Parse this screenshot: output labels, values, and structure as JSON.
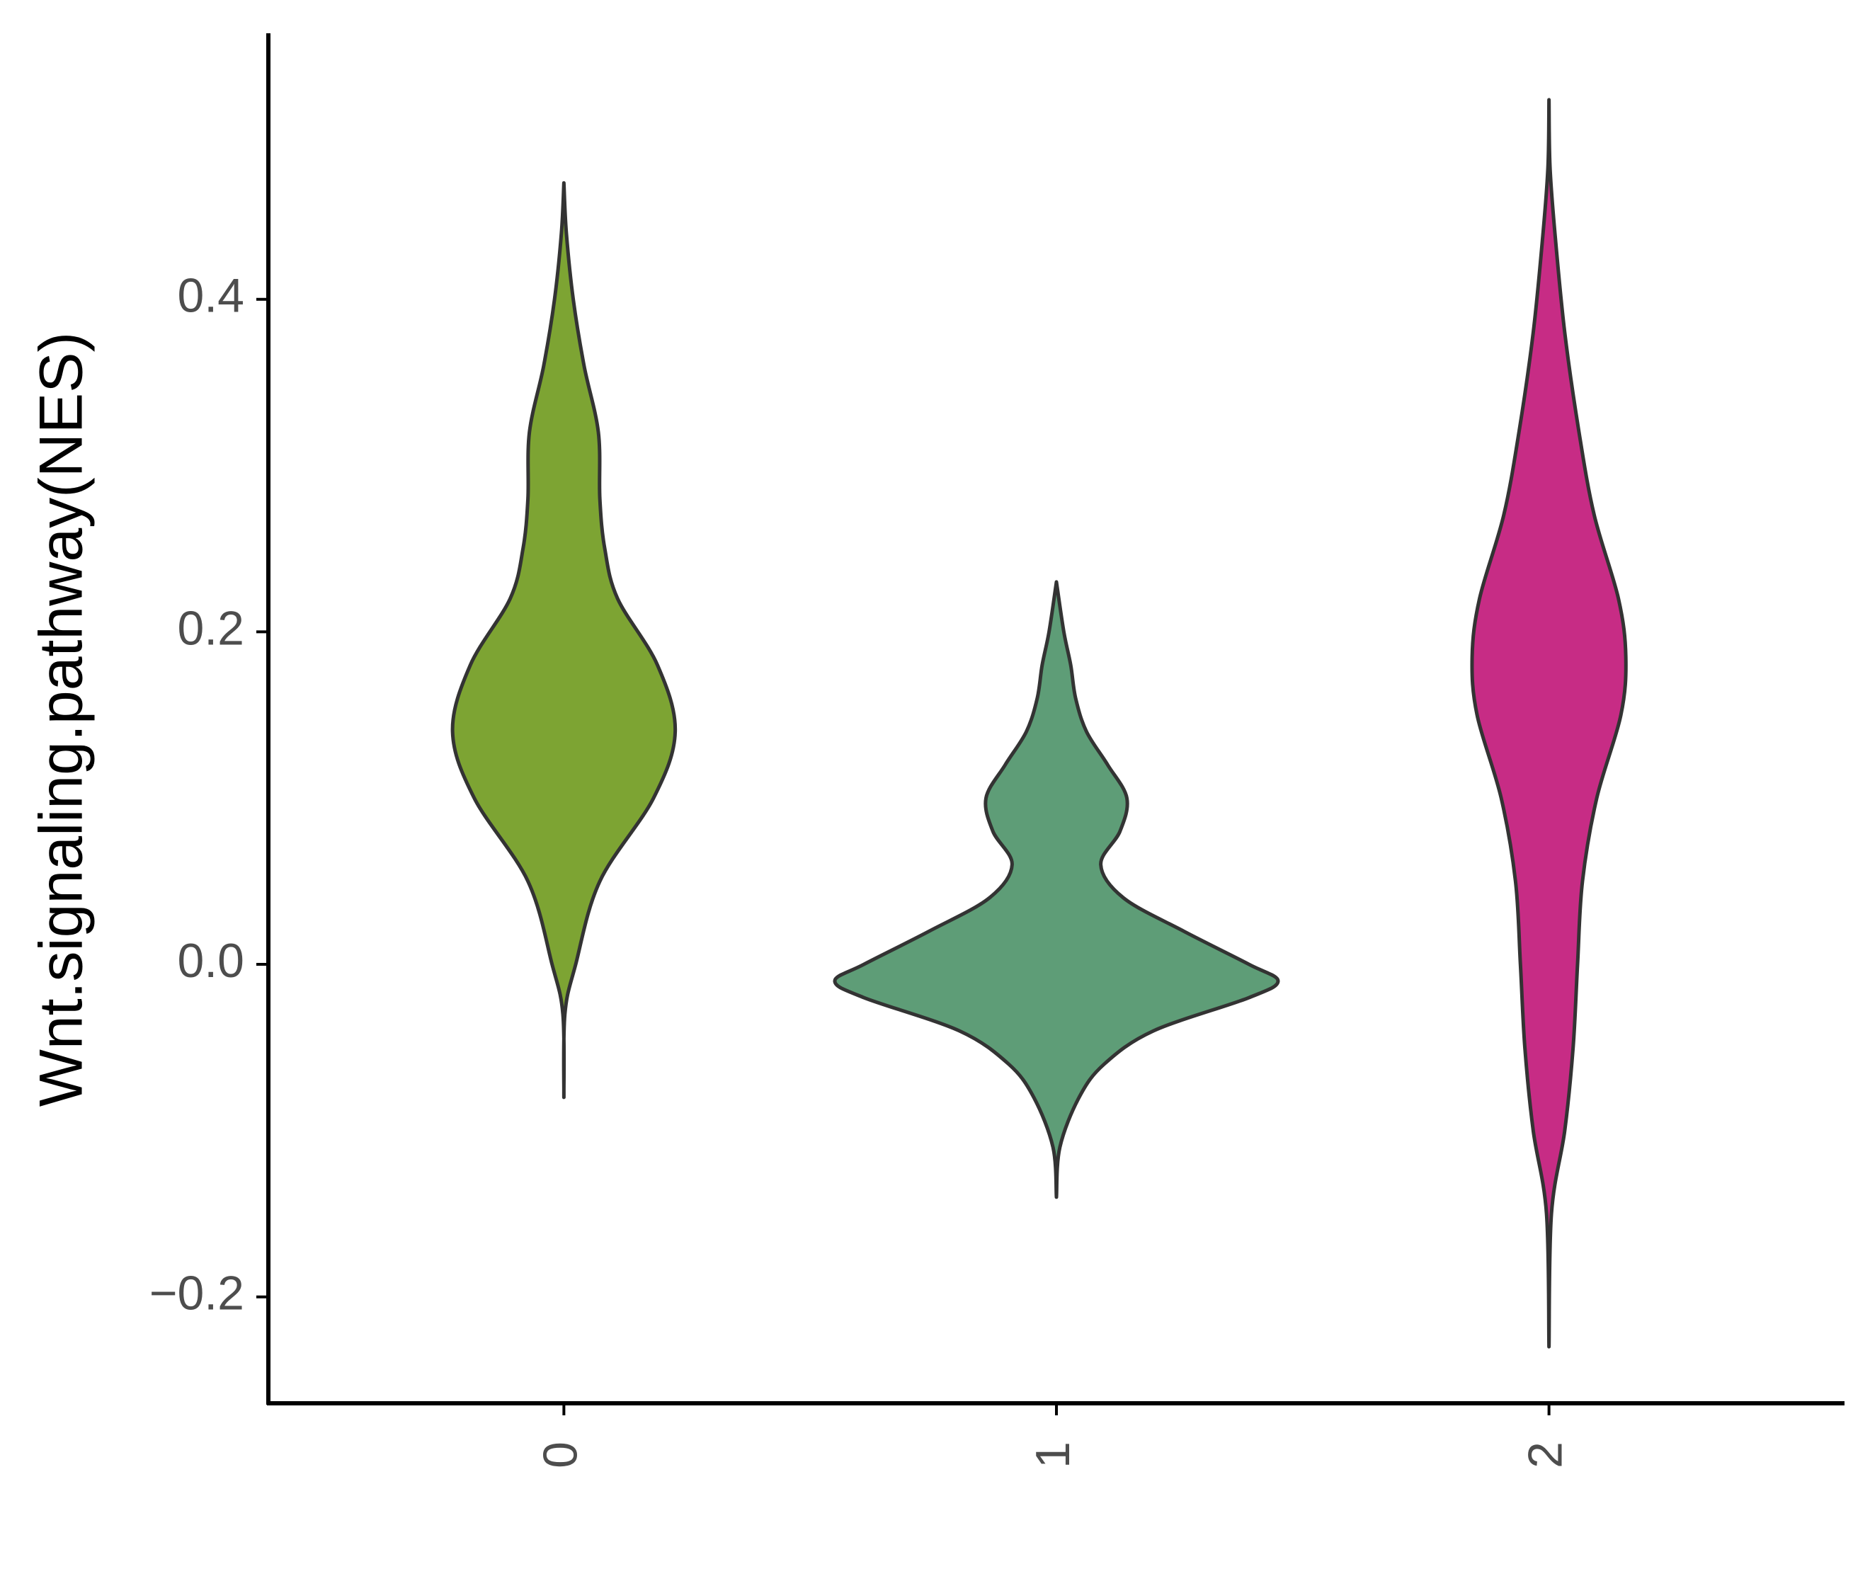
{
  "chart_data": {
    "type": "violin",
    "y_label": "Wnt.signaling.pathway(NES)",
    "categories": [
      "0",
      "1",
      "2"
    ],
    "ylim": [
      -0.264,
      0.56
    ],
    "yticks": [
      {
        "value": -0.2,
        "label": "−0.2"
      },
      {
        "value": 0,
        "label": "0.0"
      },
      0.2,
      0.4
    ],
    "series": [
      {
        "color": "#7DA433",
        "y": [
          -0.08,
          -0.03,
          0,
          0.05,
          0.1,
          0.14,
          0.18,
          0.22,
          0.25,
          0.28,
          0.32,
          0.36,
          0.4,
          0.44,
          0.47
        ],
        "half_widths": [
          0,
          0.002,
          0.024,
          0.073,
          0.182,
          0.226,
          0.19,
          0.109,
          0.083,
          0.073,
          0.07,
          0.041,
          0.019,
          0.005,
          0
        ]
      },
      {
        "color": "#5E9D77",
        "y": [
          -0.14,
          -0.11,
          -0.08,
          -0.06,
          -0.04,
          -0.02,
          -0.01,
          0,
          0.02,
          0.04,
          0.06,
          0.08,
          0.1,
          0.12,
          0.14,
          0.16,
          0.18,
          0.2,
          0.23
        ],
        "half_widths": [
          0,
          0.007,
          0.046,
          0.097,
          0.197,
          0.391,
          0.45,
          0.391,
          0.258,
          0.136,
          0.09,
          0.129,
          0.143,
          0.104,
          0.061,
          0.039,
          0.029,
          0.015,
          0
        ]
      },
      {
        "color": "#C72C85",
        "y": [
          -0.23,
          -0.15,
          -0.1,
          -0.05,
          0,
          0.05,
          0.1,
          0.15,
          0.185,
          0.22,
          0.27,
          0.32,
          0.38,
          0.44,
          0.48,
          0.52
        ],
        "half_widths": [
          0,
          0.005,
          0.032,
          0.049,
          0.058,
          0.068,
          0.097,
          0.146,
          0.156,
          0.141,
          0.092,
          0.061,
          0.032,
          0.012,
          0.002,
          0
        ]
      }
    ]
  }
}
